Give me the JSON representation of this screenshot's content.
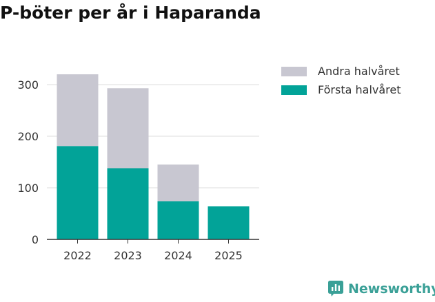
{
  "chart_data": {
    "type": "bar",
    "stacked": true,
    "title": "P-böter per år i Haparanda",
    "categories": [
      "2022",
      "2023",
      "2024",
      "2025"
    ],
    "series": [
      {
        "name": "Första halvåret",
        "color": "#02a398",
        "values": [
          181,
          138,
          74,
          64
        ]
      },
      {
        "name": "Andra halvåret",
        "color": "#c8c7d1",
        "values": [
          139,
          155,
          71,
          0
        ]
      }
    ],
    "legend_order": [
      1,
      0
    ],
    "ylim": [
      0,
      320
    ],
    "yticks": [
      0,
      100,
      200,
      300
    ],
    "grid": true,
    "legend_position": "right",
    "xlabel": "",
    "ylabel": ""
  },
  "brand": {
    "name": "Newsworthy",
    "color": "#3aa097"
  }
}
